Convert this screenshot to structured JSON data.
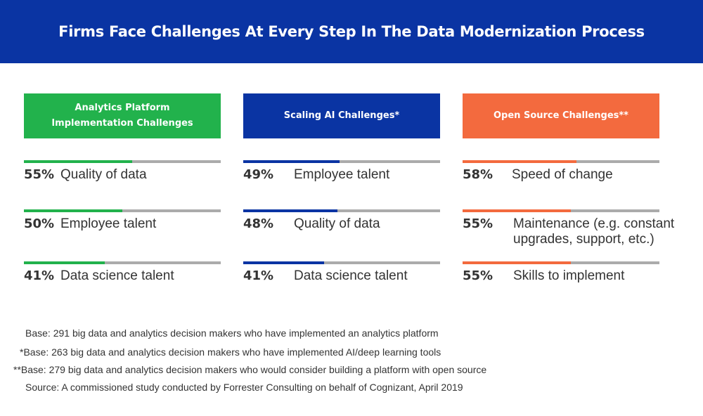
{
  "title": "Firms Face Challenges At Every Step In The Data Modernization Process",
  "colors": {
    "banner": "#0a34a3",
    "green": "#22b24c",
    "blue": "#0a34a3",
    "orange": "#f36a3e",
    "track": "#ababab"
  },
  "chart_data": [
    {
      "type": "bar",
      "title": "Analytics Platform\nImplementation Challenges",
      "categories": [
        "Quality of data",
        "Employee talent",
        "Data science talent"
      ],
      "labels": [
        "55%",
        "50%",
        "41%"
      ],
      "values": [
        55,
        50,
        41
      ],
      "ylim": [
        0,
        100
      ]
    },
    {
      "type": "bar",
      "title": "Scaling AI Challenges*",
      "categories": [
        "Employee talent",
        "Quality of data",
        "Data science talent"
      ],
      "labels": [
        "49%",
        "48%",
        "41%"
      ],
      "values": [
        49,
        48,
        41
      ],
      "ylim": [
        0,
        100
      ]
    },
    {
      "type": "bar",
      "title": "Open Source Challenges**",
      "categories": [
        "Speed of change",
        "Maintenance (e.g. constant\nupgrades, support, etc.)",
        "Skills to implement"
      ],
      "labels": [
        "58%",
        "55%",
        "55%"
      ],
      "values": [
        58,
        55,
        55
      ],
      "ylim": [
        0,
        100
      ]
    }
  ],
  "footnotes": [
    "Base: 291 big data and analytics decision makers who have implemented an analytics platform",
    "*Base: 263 big data and analytics decision makers who have implemented AI/deep learning tools",
    "**Base: 279 big data and analytics decision makers who would consider building a platform with open source",
    "Source: A commissioned study conducted by Forrester Consulting on behalf of Cognizant, April 2019"
  ]
}
